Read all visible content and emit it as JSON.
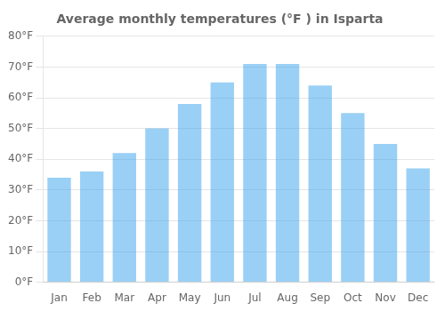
{
  "chart_data": {
    "type": "bar",
    "title": "Average monthly temperatures (°F ) in Isparta",
    "categories": [
      "Jan",
      "Feb",
      "Mar",
      "Apr",
      "May",
      "Jun",
      "Jul",
      "Aug",
      "Sep",
      "Oct",
      "Nov",
      "Dec"
    ],
    "values": [
      34,
      36,
      42,
      50,
      58,
      65,
      71,
      71,
      64,
      55,
      45,
      37
    ],
    "ylim": [
      0,
      80
    ],
    "yticks": [
      {
        "value": 0,
        "label": "0°F"
      },
      {
        "value": 10,
        "label": "10°F"
      },
      {
        "value": 20,
        "label": "20°F"
      },
      {
        "value": 30,
        "label": "30°F"
      },
      {
        "value": 40,
        "label": "40°F"
      },
      {
        "value": 50,
        "label": "50°F"
      },
      {
        "value": 60,
        "label": "60°F"
      },
      {
        "value": 70,
        "label": "70°F"
      },
      {
        "value": 80,
        "label": "80°F"
      }
    ],
    "grid": true
  }
}
